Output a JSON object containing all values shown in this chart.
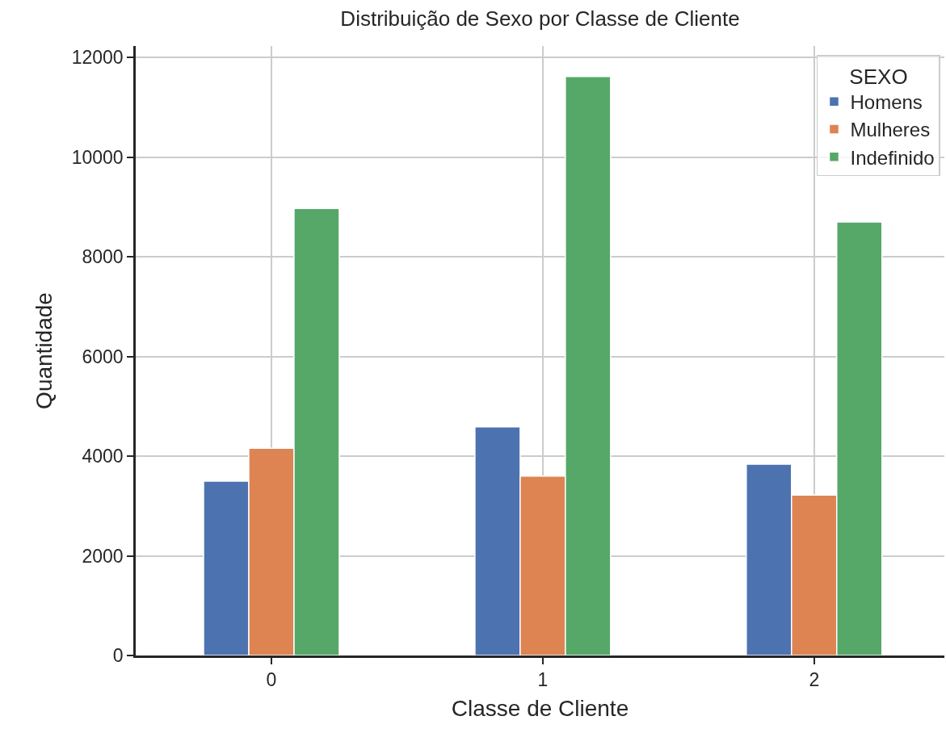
{
  "chart_data": {
    "type": "bar",
    "title": "Distribuição de Sexo por Classe de Cliente",
    "xlabel": "Classe de Cliente",
    "ylabel": "Quantidade",
    "legend_title": "SEXO",
    "categories": [
      "0",
      "1",
      "2"
    ],
    "series": [
      {
        "name": "Homens",
        "color": "#4c72b0",
        "values": [
          3500,
          4590,
          3840
        ]
      },
      {
        "name": "Mulheres",
        "color": "#dd8452",
        "values": [
          4160,
          3600,
          3220
        ]
      },
      {
        "name": "Indefinido",
        "color": "#55a868",
        "values": [
          8970,
          11620,
          8700
        ]
      }
    ],
    "ylim": [
      0,
      12230
    ],
    "yticks": [
      0,
      2000,
      4000,
      6000,
      8000,
      10000,
      12000
    ],
    "grid": true,
    "legend": "top right"
  }
}
